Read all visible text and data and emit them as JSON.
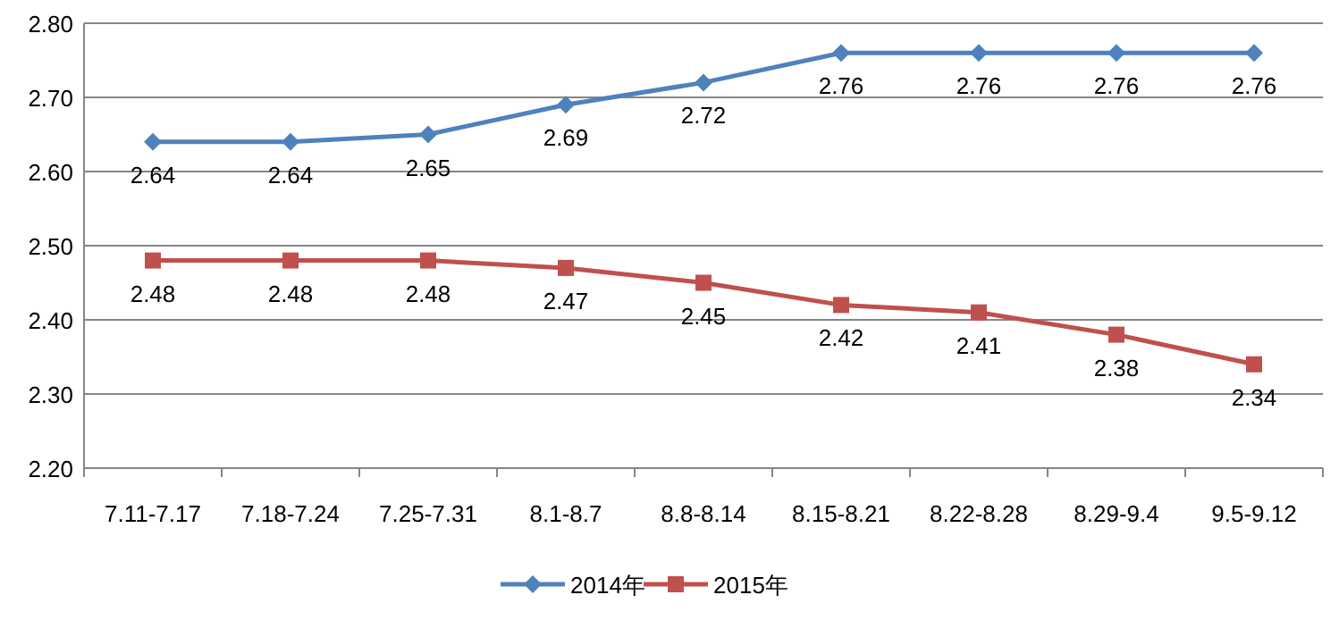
{
  "chart_data": {
    "type": "line",
    "categories": [
      "7.11-7.17",
      "7.18-7.24",
      "7.25-7.31",
      "8.1-8.7",
      "8.8-8.14",
      "8.15-8.21",
      "8.22-8.28",
      "8.29-9.4",
      "9.5-9.12"
    ],
    "series": [
      {
        "name": "2014年",
        "color": "#4f81bd",
        "marker": "diamond",
        "values": [
          2.64,
          2.64,
          2.65,
          2.69,
          2.72,
          2.76,
          2.76,
          2.76,
          2.76
        ]
      },
      {
        "name": "2015年",
        "color": "#c0504d",
        "marker": "square",
        "values": [
          2.48,
          2.48,
          2.48,
          2.47,
          2.45,
          2.42,
          2.41,
          2.38,
          2.34
        ]
      }
    ],
    "ylim": [
      2.2,
      2.8
    ],
    "yticks": [
      {
        "value": 2.2,
        "label": "2.20"
      },
      {
        "value": 2.3,
        "label": "2.30"
      },
      {
        "value": 2.4,
        "label": "2.40"
      },
      {
        "value": 2.5,
        "label": "2.50"
      },
      {
        "value": 2.6,
        "label": "2.60"
      },
      {
        "value": 2.7,
        "label": "2.70"
      },
      {
        "value": 2.8,
        "label": "2.80"
      }
    ],
    "grid": "y",
    "legend": "bottom",
    "data_labels": true,
    "line_style": "solid"
  }
}
